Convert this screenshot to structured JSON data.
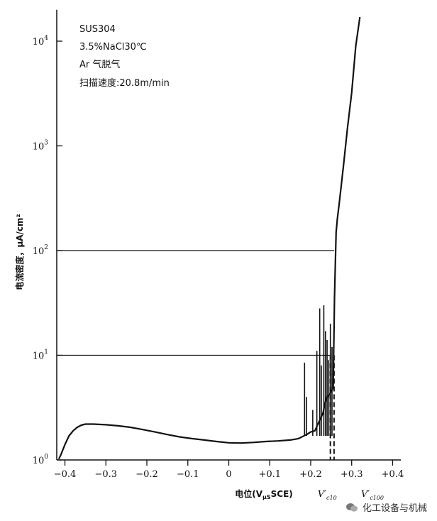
{
  "chart_data": {
    "type": "line",
    "title": "",
    "annotations": [
      "SUS304",
      "3.5%NaCl30℃",
      "Ar 气脱气",
      "扫描速度:20.8m/min"
    ],
    "xlabel_prefix": "电位(V",
    "xlabel_sub": "μS",
    "xlabel_suffix": "SCE)",
    "ylabel": "电流密度，μA/cm²",
    "xlim": [
      -0.42,
      0.42
    ],
    "ylim_log10": [
      0,
      4.3
    ],
    "y_scale": "log",
    "grid": false,
    "x_ticks": [
      -0.4,
      -0.3,
      -0.2,
      -0.1,
      0,
      0.1,
      0.2,
      0.3,
      0.4
    ],
    "x_tick_labels": [
      "−0.4",
      "−0.3",
      "−0.2",
      "−0.1",
      "0",
      "+0.1",
      "+0.2",
      "+0.3",
      "+0.4"
    ],
    "y_ticks": [
      1,
      10,
      100,
      1000,
      10000
    ],
    "y_tick_bases": [
      "10",
      "10",
      "10",
      "10",
      "10"
    ],
    "y_tick_exps": [
      "0",
      "1",
      "2",
      "3",
      "4"
    ],
    "reference_lines": [
      {
        "y": 100,
        "x_end": 0.257
      },
      {
        "y": 10,
        "x_end": 0.248
      }
    ],
    "critical_potentials": [
      {
        "x": 0.248,
        "label_main": "V′",
        "label_sub": "c10"
      },
      {
        "x": 0.257,
        "label_main": "V′",
        "label_sub": "c100"
      }
    ],
    "series": [
      {
        "x": [
          -0.415,
          -0.41,
          -0.4,
          -0.39,
          -0.38,
          -0.37,
          -0.36,
          -0.35,
          -0.33,
          -0.3,
          -0.27,
          -0.24,
          -0.21,
          -0.18,
          -0.15,
          -0.12,
          -0.09,
          -0.06,
          -0.03,
          0.0,
          0.03,
          0.06,
          0.09,
          0.12,
          0.15,
          0.17,
          0.19,
          0.2,
          0.21,
          0.22,
          0.23,
          0.235,
          0.24,
          0.245,
          0.25,
          0.255,
          0.258,
          0.262,
          0.265,
          0.27,
          0.28,
          0.29,
          0.3,
          0.31,
          0.32
        ],
        "y": [
          1.02,
          1.12,
          1.4,
          1.7,
          1.9,
          2.05,
          2.15,
          2.2,
          2.2,
          2.17,
          2.12,
          2.05,
          1.95,
          1.85,
          1.75,
          1.66,
          1.6,
          1.55,
          1.5,
          1.46,
          1.45,
          1.47,
          1.5,
          1.52,
          1.55,
          1.6,
          1.75,
          1.85,
          1.9,
          2.3,
          2.8,
          3.5,
          4.0,
          4.2,
          4.5,
          5.0,
          35,
          150,
          200,
          290,
          650,
          1500,
          3200,
          9000,
          17000
        ]
      }
    ],
    "spikes": [
      {
        "x": 0.185,
        "y": 8.5
      },
      {
        "x": 0.19,
        "y": 4.0
      },
      {
        "x": 0.205,
        "y": 3.0
      },
      {
        "x": 0.215,
        "y": 11.0
      },
      {
        "x": 0.222,
        "y": 28.0
      },
      {
        "x": 0.226,
        "y": 8.0
      },
      {
        "x": 0.232,
        "y": 30.0
      },
      {
        "x": 0.236,
        "y": 17.0
      },
      {
        "x": 0.24,
        "y": 14.0
      },
      {
        "x": 0.244,
        "y": 9.0
      },
      {
        "x": 0.248,
        "y": 20.0
      },
      {
        "x": 0.252,
        "y": 12.0
      }
    ]
  },
  "watermark": {
    "text": "化工设备与机械",
    "icon": "wechat-icon"
  }
}
